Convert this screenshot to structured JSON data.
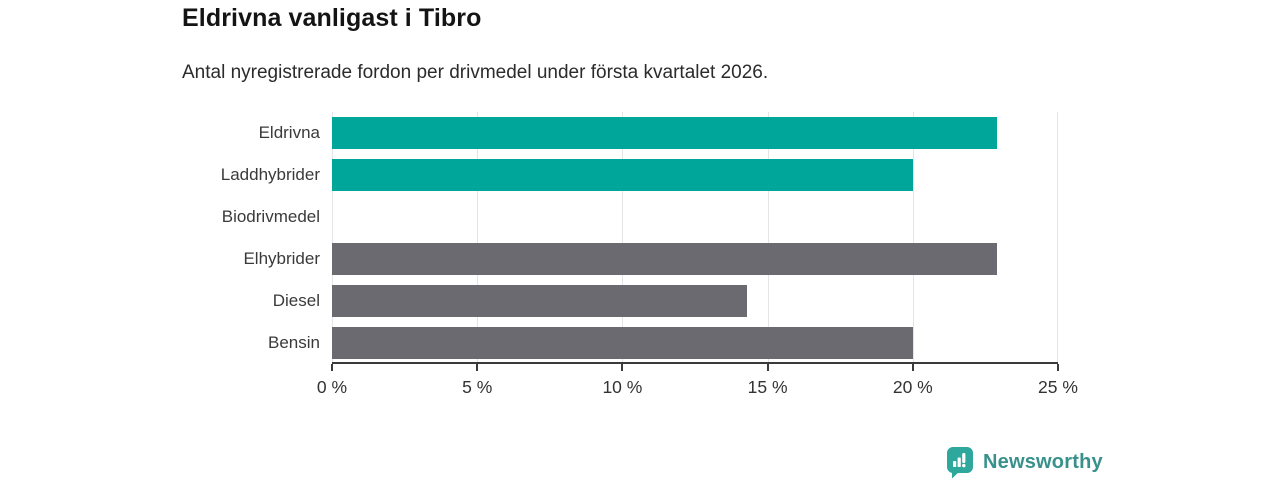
{
  "header": {
    "title": "Eldrivna vanligast i Tibro",
    "subtitle": "Antal nyregistrerade fordon per drivmedel under första kvartalet 2026."
  },
  "chart_data": {
    "type": "bar",
    "orientation": "horizontal",
    "categories": [
      "Eldrivna",
      "Laddhybrider",
      "Biodrivmedel",
      "Elhybrider",
      "Diesel",
      "Bensin"
    ],
    "values": [
      22.9,
      20,
      0,
      22.9,
      14.3,
      20
    ],
    "bar_colors": [
      "#00a69a",
      "#00a69a",
      "#00a69a",
      "#6a6a70",
      "#6a6a70",
      "#6a6a70"
    ],
    "title": "Eldrivna vanligast i Tibro",
    "subtitle": "Antal nyregistrerade fordon per drivmedel under första kvartalet 2026.",
    "xlabel": "",
    "ylabel": "",
    "xlim": [
      0,
      25
    ],
    "x_ticks": [
      0,
      5,
      10,
      15,
      20,
      25
    ],
    "x_tick_labels": [
      "0 %",
      "5 %",
      "10 %",
      "15 %",
      "20 %",
      "25 %"
    ],
    "grid": true,
    "legend": false,
    "accent_color": "#00a69a",
    "neutral_color": "#6a6a70"
  },
  "footer": {
    "brand": "Newsworthy",
    "brand_color": "#38918b",
    "logo_icon": "bar-chart-pin-icon",
    "logo_bg": "#2ea79d"
  }
}
